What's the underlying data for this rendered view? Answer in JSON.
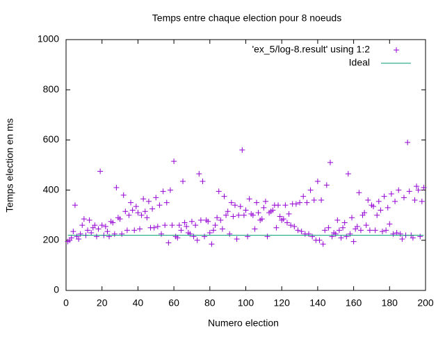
{
  "chart_data": {
    "type": "scatter",
    "title": "Temps entre chaque election pour 8 noeuds",
    "x_label": "Numero election",
    "y_label": "Temps election en ms",
    "xlim": [
      0,
      200
    ],
    "xticks": [
      0,
      20,
      40,
      60,
      80,
      100,
      120,
      140,
      160,
      180,
      200
    ],
    "ylim": [
      0,
      1000
    ],
    "yticks": [
      0,
      200,
      400,
      600,
      800,
      1000
    ],
    "legend": "top right",
    "series": [
      {
        "name": "'ex_5/log-8.result' using 1:2",
        "color": "#9400d3",
        "style": "points",
        "x": [
          1,
          2,
          3,
          4,
          5,
          6,
          7,
          8,
          9,
          10,
          11,
          12,
          13,
          14,
          15,
          16,
          17,
          18,
          19,
          20,
          21,
          22,
          23,
          24,
          25,
          26,
          27,
          28,
          29,
          30,
          31,
          32,
          33,
          34,
          35,
          36,
          37,
          38,
          39,
          40,
          41,
          42,
          43,
          44,
          45,
          46,
          47,
          48,
          49,
          50,
          51,
          52,
          53,
          54,
          55,
          56,
          57,
          58,
          59,
          60,
          61,
          62,
          63,
          64,
          65,
          66,
          67,
          68,
          69,
          70,
          71,
          72,
          73,
          74,
          75,
          76,
          77,
          78,
          79,
          80,
          81,
          82,
          83,
          84,
          85,
          86,
          87,
          88,
          89,
          90,
          91,
          92,
          93,
          94,
          95,
          96,
          97,
          98,
          99,
          100,
          101,
          102,
          103,
          104,
          105,
          106,
          107,
          108,
          109,
          110,
          111,
          112,
          113,
          114,
          115,
          116,
          117,
          118,
          119,
          120,
          121,
          122,
          123,
          124,
          125,
          126,
          127,
          128,
          129,
          130,
          131,
          132,
          133,
          134,
          135,
          136,
          137,
          138,
          139,
          140,
          141,
          142,
          143,
          144,
          145,
          146,
          147,
          148,
          149,
          150,
          151,
          152,
          153,
          154,
          155,
          156,
          157,
          158,
          159,
          160,
          161,
          162,
          163,
          164,
          165,
          166,
          167,
          168,
          169,
          170,
          171,
          172,
          173,
          174,
          175,
          176,
          177,
          178,
          179,
          180,
          181,
          182,
          183,
          184,
          185,
          186,
          187,
          188,
          189,
          190,
          191,
          192,
          193,
          194,
          195,
          196,
          197,
          198,
          199
        ],
        "values": [
          195,
          200,
          210,
          235,
          340,
          215,
          205,
          225,
          260,
          285,
          220,
          240,
          280,
          230,
          250,
          260,
          215,
          245,
          475,
          260,
          220,
          255,
          235,
          215,
          275,
          270,
          225,
          410,
          290,
          285,
          225,
          380,
          315,
          240,
          300,
          350,
          320,
          240,
          335,
          310,
          245,
          300,
          365,
          315,
          290,
          355,
          250,
          325,
          250,
          370,
          255,
          340,
          225,
          395,
          260,
          350,
          190,
          400,
          260,
          515,
          215,
          210,
          260,
          240,
          435,
          270,
          255,
          230,
          225,
          275,
          215,
          260,
          200,
          465,
          280,
          435,
          215,
          280,
          275,
          230,
          185,
          240,
          260,
          290,
          395,
          280,
          245,
          375,
          300,
          315,
          225,
          350,
          295,
          340,
          205,
          300,
          335,
          560,
          300,
          320,
          215,
          365,
          305,
          300,
          245,
          350,
          310,
          280,
          285,
          330,
          355,
          215,
          310,
          315,
          320,
          340,
          250,
          340,
          295,
          280,
          285,
          340,
          270,
          305,
          260,
          345,
          255,
          345,
          240,
          350,
          235,
          375,
          225,
          350,
          225,
          400,
          215,
          360,
          200,
          435,
          200,
          360,
          185,
          240,
          420,
          250,
          510,
          215,
          230,
          225,
          280,
          240,
          210,
          250,
          270,
          215,
          465,
          225,
          290,
          195,
          245,
          255,
          390,
          240,
          300,
          310,
          260,
          360,
          240,
          340,
          335,
          240,
          300,
          355,
          320,
          235,
          375,
          240,
          330,
          265,
          385,
          225,
          355,
          230,
          400,
          225,
          205,
          370,
          220,
          590,
          395,
          220,
          210,
          360,
          415,
          400,
          215,
          355,
          410
        ]
      },
      {
        "name": "Ideal",
        "color": "#009e73",
        "style": "line",
        "x": [
          1,
          199
        ],
        "values": [
          220,
          220
        ]
      }
    ]
  }
}
